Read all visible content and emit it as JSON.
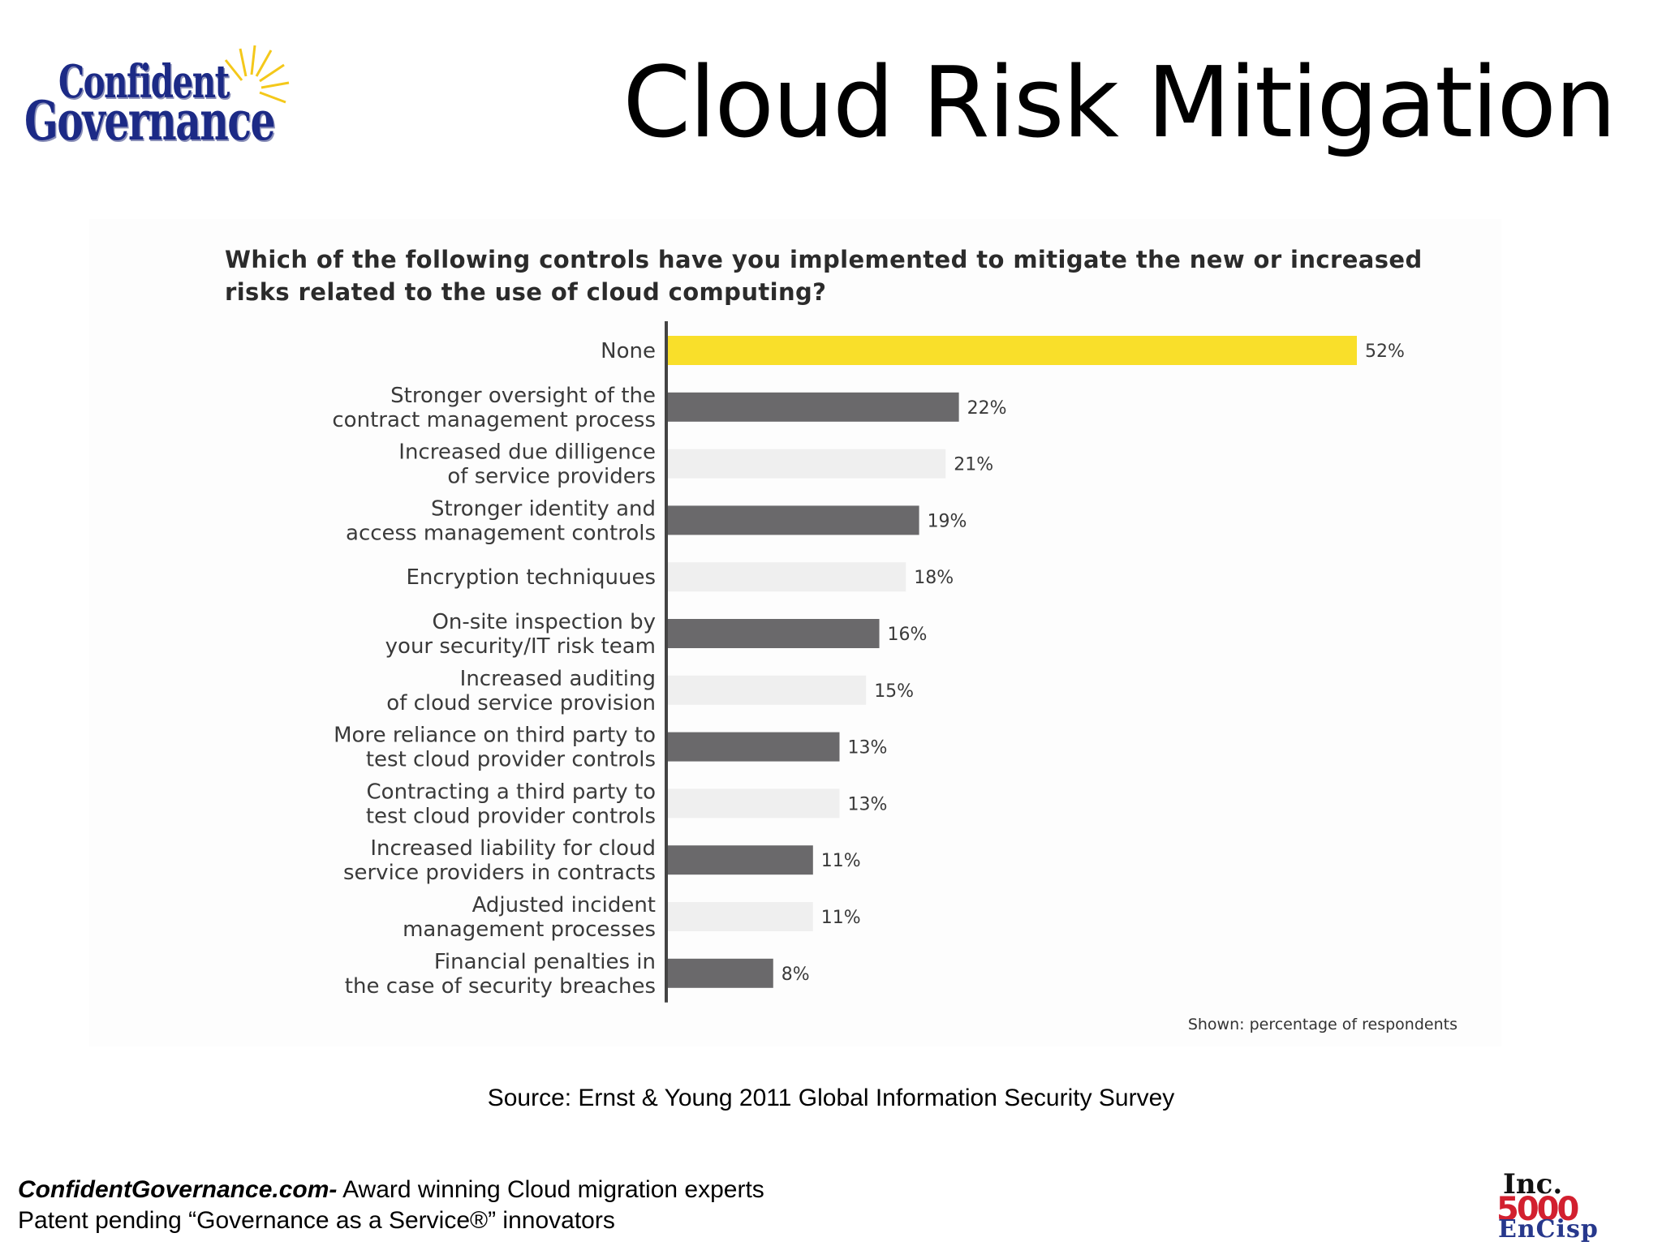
{
  "logo": {
    "line1": "Confident",
    "line2": "Governance"
  },
  "slide_title": "Cloud Risk Mitigation",
  "chart_data": {
    "type": "bar",
    "orientation": "horizontal",
    "title": "Which of the following controls have you implemented to mitigate the new or increased risks related to the use of cloud computing?",
    "categories": [
      [
        "None"
      ],
      [
        "Stronger oversight of the",
        "contract management process"
      ],
      [
        "Increased due dilligence",
        "of service providers"
      ],
      [
        "Stronger identity and",
        "access management controls"
      ],
      [
        "Encryption techniquues"
      ],
      [
        "On-site inspection by",
        "your security/IT risk team"
      ],
      [
        "Increased auditing",
        "of cloud service provision"
      ],
      [
        "More reliance on third party to",
        "test cloud provider controls"
      ],
      [
        "Contracting a third party to",
        "test cloud provider controls"
      ],
      [
        "Increased liability for cloud",
        "service providers in contracts"
      ],
      [
        "Adjusted incident",
        "management processes"
      ],
      [
        "Financial penalties in",
        "the case of security breaches"
      ]
    ],
    "values": [
      52,
      22,
      21,
      19,
      18,
      16,
      15,
      13,
      13,
      11,
      11,
      8
    ],
    "value_labels": [
      "52%",
      "22%",
      "21%",
      "19%",
      "18%",
      "16%",
      "15%",
      "13%",
      "13%",
      "11%",
      "11%",
      "8%"
    ],
    "colors": [
      "#f9df2a",
      "#6a696b",
      "#efefef",
      "#6a696b",
      "#efefef",
      "#6a696b",
      "#efefef",
      "#6a696b",
      "#efefef",
      "#6a696b",
      "#efefef",
      "#6a696b"
    ],
    "axis_color": "#444444",
    "xlim": [
      0,
      52
    ],
    "grid": false,
    "legend": "none",
    "note": "Shown: percentage of respondents"
  },
  "source": "Source:  Ernst & Young 2011 Global Information Security Survey",
  "footer": {
    "brand": "ConfidentGovernance.com-",
    "tagline": " Award winning Cloud migration experts",
    "line2": "Patent pending  “Governance as a Service®” innovators"
  },
  "badge": {
    "line1": "Inc.",
    "line2": "5000",
    "line3": "EnCisp"
  }
}
